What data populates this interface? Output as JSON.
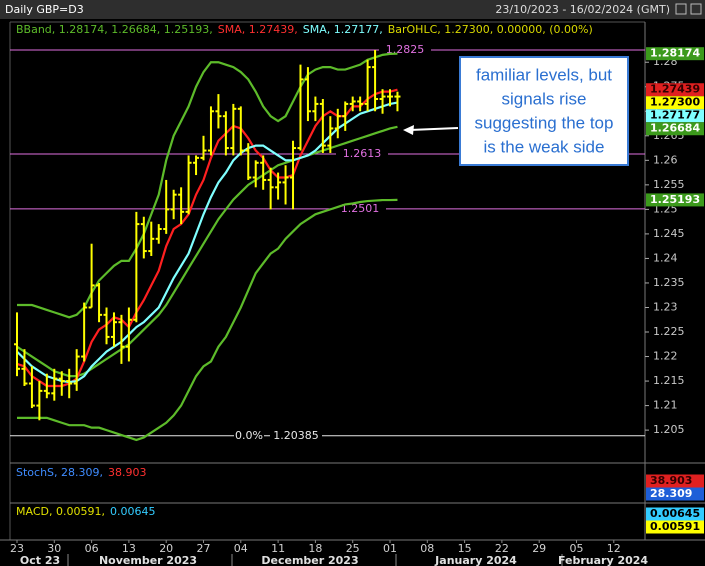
{
  "chart_data": {
    "type": "ohlc",
    "title": "Daily GBP=D3",
    "date_range": "23/10/2023 - 16/02/2024 (GMT)",
    "legend": [
      {
        "text": "BBand, 1.28174, 1.26684, 1.25193,",
        "color": "#5dbb2a"
      },
      {
        "text": "SMA, 1.27439,",
        "color": "#ff3030"
      },
      {
        "text": "SMA, 1.27177,",
        "color": "#7fffff"
      },
      {
        "text": "BarOHLC, 1.27300, 0.00000, (0.00%)",
        "color": "#d8d800"
      }
    ],
    "annotation": [
      "familiar levels, but",
      "signals rise",
      "suggesting the top",
      "is the weak side"
    ],
    "categories": [
      "23",
      null,
      null,
      null,
      null,
      "30",
      null,
      null,
      null,
      null,
      "06",
      null,
      null,
      null,
      null,
      "13",
      null,
      null,
      null,
      null,
      "20",
      null,
      null,
      null,
      null,
      "27",
      null,
      null,
      null,
      null,
      "04",
      null,
      null,
      null,
      null,
      "11",
      null,
      null,
      null,
      null,
      "18",
      null,
      null,
      null,
      null,
      "25",
      null,
      null,
      null,
      null,
      "01",
      null,
      null,
      null,
      null,
      "08",
      null,
      null,
      null,
      null,
      "15",
      null,
      null,
      null,
      null,
      "22",
      null,
      null,
      null,
      null,
      "29",
      null,
      null,
      null,
      null,
      "05",
      null,
      null,
      null,
      null,
      "12",
      null,
      null,
      null,
      null
    ],
    "month_labels": [
      "Oct 23",
      "November 2023",
      "December 2023",
      "January 2024",
      "February 2024"
    ],
    "ylim": [
      1.1985,
      1.2882
    ],
    "yticks": [
      1.28,
      1.275,
      1.27,
      1.265,
      1.26,
      1.255,
      1.25,
      1.245,
      1.24,
      1.235,
      1.23,
      1.225,
      1.22,
      1.215,
      1.21,
      1.205
    ],
    "bars": {
      "color": "#ffff00",
      "open": [
        1.2225,
        1.2175,
        1.2145,
        1.21,
        1.213,
        1.2125,
        1.2155,
        1.215,
        1.2145,
        1.22,
        1.23,
        1.2345,
        1.2285,
        1.224,
        1.227,
        1.222,
        1.2275,
        1.247,
        1.2415,
        1.244,
        1.246,
        1.25,
        1.253,
        1.2495,
        1.2595,
        1.2605,
        1.262,
        1.27,
        1.269,
        1.2625,
        1.2705,
        1.262,
        1.2565,
        1.2595,
        1.256,
        1.2545,
        1.2555,
        1.2565,
        1.2625,
        1.2765,
        1.27,
        1.2715,
        1.263,
        1.2665,
        1.269,
        1.2715,
        1.272,
        1.2715,
        1.279,
        1.2725,
        1.273,
        1.273,
        null,
        null,
        null,
        null,
        null,
        null,
        null,
        null,
        null,
        null,
        null,
        null,
        null,
        null,
        null,
        null,
        null,
        null,
        null,
        null,
        null,
        null,
        null,
        null,
        null,
        null,
        null,
        null,
        null,
        null,
        null,
        null,
        null
      ],
      "high": [
        1.229,
        1.2215,
        1.218,
        1.215,
        1.2165,
        1.2175,
        1.217,
        1.2175,
        1.2215,
        1.231,
        1.243,
        1.235,
        1.23,
        1.229,
        1.2285,
        1.23,
        1.2495,
        1.2485,
        1.2475,
        1.247,
        1.256,
        1.254,
        1.2545,
        1.261,
        1.261,
        1.265,
        1.271,
        1.2735,
        1.27,
        1.2715,
        1.271,
        1.2635,
        1.26,
        1.261,
        1.2585,
        1.2575,
        1.259,
        1.264,
        1.2795,
        1.279,
        1.273,
        1.2725,
        1.269,
        1.2705,
        1.272,
        1.273,
        1.273,
        1.2805,
        1.2825,
        1.2745,
        1.2745,
        1.274,
        null,
        null,
        null,
        null,
        null,
        null,
        null,
        null,
        null,
        null,
        null,
        null,
        null,
        null,
        null,
        null,
        null,
        null,
        null,
        null,
        null,
        null,
        null,
        null,
        null,
        null,
        null,
        null,
        null,
        null,
        null,
        null,
        null
      ],
      "low": [
        1.216,
        1.214,
        1.2095,
        1.207,
        1.2115,
        1.211,
        1.212,
        1.2115,
        1.213,
        1.219,
        1.23,
        1.227,
        1.2225,
        1.222,
        1.2185,
        1.219,
        1.227,
        1.24,
        1.2405,
        1.243,
        1.245,
        1.248,
        1.247,
        1.249,
        1.257,
        1.26,
        1.261,
        1.2665,
        1.261,
        1.261,
        1.261,
        1.256,
        1.2545,
        1.254,
        1.25,
        1.252,
        1.251,
        1.25,
        1.262,
        1.268,
        1.268,
        1.2615,
        1.2615,
        1.2645,
        1.266,
        1.27,
        1.27,
        1.27,
        1.27,
        1.2695,
        1.271,
        1.27,
        null,
        null,
        null,
        null,
        null,
        null,
        null,
        null,
        null,
        null,
        null,
        null,
        null,
        null,
        null,
        null,
        null,
        null,
        null,
        null,
        null,
        null,
        null,
        null,
        null,
        null,
        null,
        null,
        null,
        null,
        null,
        null,
        null
      ],
      "close": [
        1.2175,
        1.2145,
        1.21,
        1.213,
        1.2125,
        1.2155,
        1.215,
        1.2145,
        1.22,
        1.23,
        1.2345,
        1.2285,
        1.224,
        1.227,
        1.222,
        1.2275,
        1.247,
        1.2415,
        1.244,
        1.246,
        1.25,
        1.253,
        1.2495,
        1.2595,
        1.2605,
        1.262,
        1.27,
        1.269,
        1.2625,
        1.2705,
        1.262,
        1.2565,
        1.2595,
        1.256,
        1.2545,
        1.2555,
        1.2565,
        1.2625,
        1.2765,
        1.27,
        1.2715,
        1.263,
        1.2665,
        1.269,
        1.2715,
        1.272,
        1.2715,
        1.279,
        1.2725,
        1.273,
        1.273,
        1.273,
        null,
        null,
        null,
        null,
        null,
        null,
        null,
        null,
        null,
        null,
        null,
        null,
        null,
        null,
        null,
        null,
        null,
        null,
        null,
        null,
        null,
        null,
        null,
        null,
        null,
        null,
        null,
        null,
        null,
        null,
        null,
        null,
        null
      ]
    },
    "lines": [
      {
        "color": "#5dbb2a",
        "values": [
          1.2305,
          1.2305,
          1.2305,
          1.23,
          1.2295,
          1.229,
          1.2285,
          1.228,
          1.2285,
          1.23,
          1.233,
          1.2355,
          1.237,
          1.2385,
          1.2395,
          1.2395,
          1.242,
          1.245,
          1.249,
          1.253,
          1.26,
          1.265,
          1.268,
          1.271,
          1.275,
          1.278,
          1.28,
          1.28,
          1.2795,
          1.279,
          1.278,
          1.2765,
          1.274,
          1.271,
          1.269,
          1.268,
          1.269,
          1.272,
          1.275,
          1.2775,
          1.2785,
          1.279,
          1.279,
          1.2785,
          1.2785,
          1.279,
          1.2795,
          1.2805,
          1.281,
          1.2815,
          1.2817,
          1.28174,
          null,
          null,
          null,
          null,
          null,
          null,
          null,
          null,
          null,
          null,
          null,
          null,
          null,
          null,
          null,
          null,
          null,
          null,
          null,
          null,
          null,
          null,
          null,
          null,
          null,
          null,
          null,
          null,
          null,
          null,
          null,
          null,
          null
        ]
      },
      {
        "color": "#5dbb2a",
        "values": [
          1.222,
          1.221,
          1.22,
          1.219,
          1.218,
          1.217,
          1.2165,
          1.216,
          1.216,
          1.2165,
          1.2175,
          1.2185,
          1.2195,
          1.2205,
          1.2215,
          1.2225,
          1.224,
          1.2255,
          1.227,
          1.2285,
          1.2305,
          1.233,
          1.2355,
          1.238,
          1.2405,
          1.243,
          1.2455,
          1.248,
          1.25,
          1.252,
          1.2535,
          1.255,
          1.256,
          1.257,
          1.258,
          1.259,
          1.2595,
          1.26,
          1.2605,
          1.261,
          1.2615,
          1.262,
          1.2625,
          1.263,
          1.2635,
          1.264,
          1.2645,
          1.265,
          1.2655,
          1.266,
          1.2665,
          1.26684,
          null,
          null,
          null,
          null,
          null,
          null,
          null,
          null,
          null,
          null,
          null,
          null,
          null,
          null,
          null,
          null,
          null,
          null,
          null,
          null,
          null,
          null,
          null,
          null,
          null,
          null,
          null,
          null,
          null,
          null,
          null,
          null,
          null
        ]
      },
      {
        "color": "#5dbb2a",
        "values": [
          1.2075,
          1.2075,
          1.2075,
          1.2075,
          1.2075,
          1.207,
          1.2065,
          1.206,
          1.206,
          1.206,
          1.2055,
          1.2055,
          1.205,
          1.2045,
          1.204,
          1.2035,
          1.203,
          1.2035,
          1.2045,
          1.2055,
          1.2065,
          1.208,
          1.21,
          1.213,
          1.216,
          1.218,
          1.219,
          1.222,
          1.224,
          1.227,
          1.23,
          1.2335,
          1.237,
          1.239,
          1.241,
          1.242,
          1.244,
          1.2455,
          1.247,
          1.248,
          1.249,
          1.2495,
          1.25,
          1.2505,
          1.251,
          1.2512,
          1.2515,
          1.2517,
          1.2518,
          1.2519,
          1.2519,
          1.25193,
          null,
          null,
          null,
          null,
          null,
          null,
          null,
          null,
          null,
          null,
          null,
          null,
          null,
          null,
          null,
          null,
          null,
          null,
          null,
          null,
          null,
          null,
          null,
          null,
          null,
          null,
          null,
          null,
          null,
          null,
          null,
          null,
          null
        ]
      },
      {
        "color": "#ff2020",
        "values": [
          1.2185,
          1.218,
          1.216,
          1.215,
          1.214,
          1.214,
          1.214,
          1.2145,
          1.2155,
          1.219,
          1.223,
          1.2255,
          1.2265,
          1.228,
          1.2275,
          1.226,
          1.229,
          1.2315,
          1.2345,
          1.2375,
          1.2425,
          1.246,
          1.247,
          1.249,
          1.253,
          1.256,
          1.2605,
          1.264,
          1.2655,
          1.267,
          1.2665,
          1.2645,
          1.262,
          1.2605,
          1.258,
          1.2565,
          1.2565,
          1.257,
          1.261,
          1.264,
          1.267,
          1.269,
          1.27,
          1.269,
          1.269,
          1.271,
          1.271,
          1.2725,
          1.2735,
          1.274,
          1.274,
          1.27439,
          null,
          null,
          null,
          null,
          null,
          null,
          null,
          null,
          null,
          null,
          null,
          null,
          null,
          null,
          null,
          null,
          null,
          null,
          null,
          null,
          null,
          null,
          null,
          null,
          null,
          null,
          null,
          null,
          null,
          null,
          null,
          null,
          null
        ]
      },
      {
        "color": "#7fffff",
        "values": [
          1.221,
          1.2195,
          1.218,
          1.217,
          1.216,
          1.2155,
          1.215,
          1.2148,
          1.215,
          1.216,
          1.218,
          1.2195,
          1.221,
          1.222,
          1.223,
          1.2245,
          1.226,
          1.227,
          1.2285,
          1.23,
          1.233,
          1.236,
          1.2385,
          1.241,
          1.245,
          1.249,
          1.2525,
          1.2555,
          1.2575,
          1.26,
          1.2615,
          1.2625,
          1.263,
          1.263,
          1.262,
          1.261,
          1.26,
          1.26,
          1.2605,
          1.261,
          1.262,
          1.2635,
          1.265,
          1.2665,
          1.2675,
          1.2685,
          1.2695,
          1.27,
          1.2705,
          1.271,
          1.2715,
          1.27177,
          null,
          null,
          null,
          null,
          null,
          null,
          null,
          null,
          null,
          null,
          null,
          null,
          null,
          null,
          null,
          null,
          null,
          null,
          null,
          null,
          null,
          null,
          null,
          null,
          null,
          null,
          null,
          null,
          null,
          null,
          null,
          null,
          null
        ]
      }
    ],
    "levels": [
      {
        "value": 1.2825,
        "color": "#e070e0"
      },
      {
        "value": 1.2613,
        "color": "#e070e0"
      },
      {
        "value": 1.2501,
        "color": "#e070e0"
      },
      {
        "value": 1.20385,
        "color": "#e8e8e8",
        "label": "0.0%"
      }
    ],
    "price_labels": [
      {
        "value": 1.28174,
        "color": "#3c9a1c",
        "text_color": "#ffffff"
      },
      {
        "value": 1.27439,
        "color": "#e02020",
        "text_color": "#300000"
      },
      {
        "value": {
          "value": 1.273,
          "label": "1.27300"
        },
        "color": "#ffff00",
        "text_color": "#000000"
      },
      {
        "value": 1.27177,
        "color": "#7fffff",
        "text_color": "#000000"
      },
      {
        "value": 1.26684,
        "color": "#3c9a1c",
        "text_color": "#ffffff"
      },
      {
        "value": 1.25193,
        "color": "#3c9a1c",
        "text_color": "#ffffff"
      }
    ],
    "stoch": {
      "legend": [
        {
          "text": "StochS, 28.309,",
          "color": "#3f8cff"
        },
        {
          "text": "38.903",
          "color": "#ff3030"
        }
      ],
      "badges": [
        {
          "text": "38.903",
          "color": "#e02020",
          "text_color": "#300000"
        },
        {
          "text": "28.309",
          "color": "#1e5fd8",
          "text_color": "#ffffff"
        }
      ]
    },
    "macd": {
      "legend": [
        {
          "text": "MACD, 0.00591,",
          "color": "#e0e000"
        },
        {
          "text": "0.00645",
          "color": "#33ccff"
        }
      ],
      "badges": [
        {
          "text": "0.00645",
          "color": "#33ccff",
          "text_color": "#000000"
        },
        {
          "text": "0.00591",
          "color": "#ffff00",
          "text_color": "#000000"
        }
      ]
    }
  }
}
